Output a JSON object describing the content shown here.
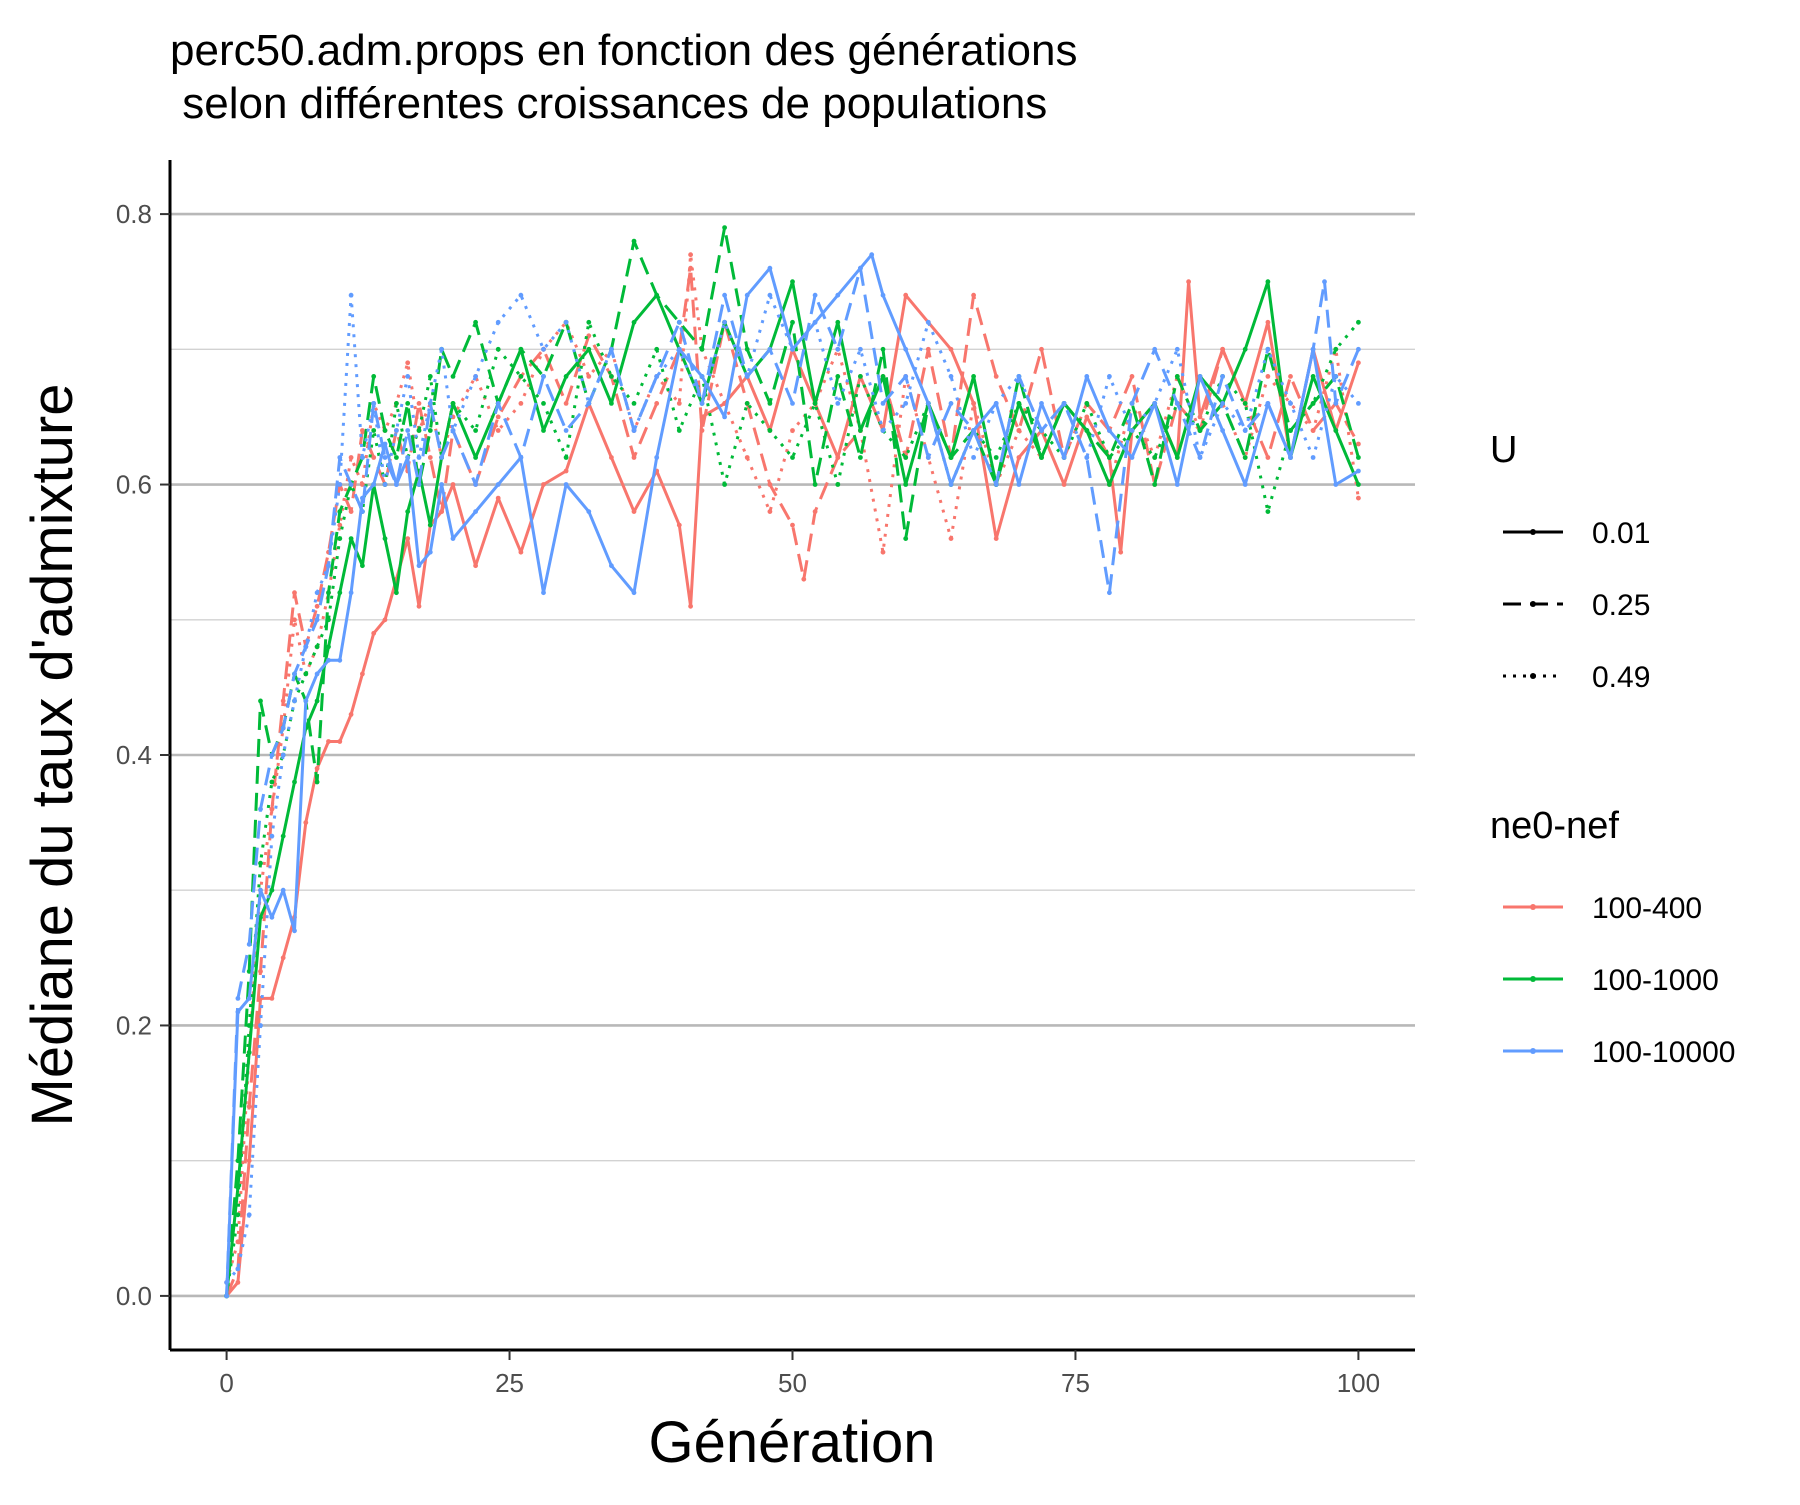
{
  "chart_data": {
    "type": "line",
    "title_lines": [
      "perc50.adm.props en fonction des générations",
      " selon différentes croissances de populations"
    ],
    "xlabel": "Génération",
    "ylabel": "Médiane du taux d'admixture",
    "x_ticks": [
      0,
      25,
      50,
      75,
      100
    ],
    "y_ticks": [
      0.0,
      0.2,
      0.4,
      0.6,
      0.8
    ],
    "x_tick_labels": [
      "0",
      "25",
      "50",
      "75",
      "100"
    ],
    "y_tick_labels": [
      "0.0",
      "0.2",
      "0.4",
      "0.6",
      "0.8"
    ],
    "xlim": [
      -5,
      105
    ],
    "ylim": [
      -0.04,
      0.84
    ],
    "grid": "horizontal",
    "legend_placement": "right",
    "legends": {
      "linetype": {
        "title": "U",
        "entries": [
          {
            "label": "0.01",
            "dash": "solid"
          },
          {
            "label": "0.25",
            "dash": "dashed"
          },
          {
            "label": "0.49",
            "dash": "dotted"
          }
        ]
      },
      "color": {
        "title": "ne0-nef",
        "entries": [
          {
            "label": "100-400",
            "color": "#F8766D"
          },
          {
            "label": "100-1000",
            "color": "#00BA38"
          },
          {
            "label": "100-10000",
            "color": "#619CFF"
          }
        ]
      }
    },
    "series": [
      {
        "ne": "100-400",
        "u": "0.01",
        "color": "#F8766D",
        "dash": "solid",
        "x": [
          0,
          1,
          2,
          3,
          4,
          5,
          6,
          7,
          8,
          9,
          10,
          11,
          12,
          13,
          14,
          15,
          16,
          17,
          18,
          19,
          20,
          22,
          24,
          26,
          28,
          30,
          32,
          34,
          36,
          38,
          40,
          41,
          42,
          44,
          46,
          48,
          50,
          52,
          54,
          56,
          58,
          60,
          62,
          64,
          66,
          68,
          70,
          72,
          74,
          76,
          78,
          79,
          80,
          82,
          84,
          85,
          86,
          88,
          90,
          92,
          94,
          96,
          98,
          100
        ],
        "y": [
          0.0,
          0.01,
          0.1,
          0.22,
          0.22,
          0.25,
          0.28,
          0.35,
          0.39,
          0.41,
          0.41,
          0.43,
          0.46,
          0.49,
          0.5,
          0.53,
          0.56,
          0.51,
          0.57,
          0.58,
          0.6,
          0.54,
          0.59,
          0.55,
          0.6,
          0.61,
          0.66,
          0.62,
          0.58,
          0.61,
          0.57,
          0.51,
          0.65,
          0.66,
          0.68,
          0.64,
          0.7,
          0.66,
          0.62,
          0.68,
          0.64,
          0.74,
          0.72,
          0.7,
          0.66,
          0.56,
          0.62,
          0.64,
          0.6,
          0.65,
          0.62,
          0.55,
          0.64,
          0.66,
          0.62,
          0.75,
          0.65,
          0.7,
          0.66,
          0.72,
          0.62,
          0.7,
          0.64,
          0.69
        ]
      },
      {
        "ne": "100-400",
        "u": "0.25",
        "color": "#F8766D",
        "dash": "dashed",
        "x": [
          0,
          1,
          2,
          3,
          4,
          5,
          6,
          7,
          8,
          9,
          10,
          11,
          12,
          13,
          14,
          15,
          16,
          17,
          18,
          19,
          20,
          22,
          24,
          26,
          28,
          30,
          32,
          34,
          36,
          38,
          40,
          41,
          42,
          44,
          46,
          48,
          50,
          51,
          52,
          54,
          56,
          58,
          60,
          62,
          64,
          66,
          68,
          70,
          72,
          74,
          76,
          78,
          80,
          82,
          84,
          86,
          88,
          90,
          92,
          94,
          96,
          98,
          100
        ],
        "y": [
          0.0,
          0.02,
          0.14,
          0.24,
          0.36,
          0.44,
          0.52,
          0.48,
          0.51,
          0.55,
          0.6,
          0.58,
          0.64,
          0.62,
          0.6,
          0.64,
          0.61,
          0.66,
          0.62,
          0.58,
          0.64,
          0.6,
          0.65,
          0.68,
          0.7,
          0.66,
          0.71,
          0.68,
          0.62,
          0.66,
          0.7,
          0.76,
          0.64,
          0.72,
          0.66,
          0.6,
          0.57,
          0.53,
          0.58,
          0.62,
          0.64,
          0.68,
          0.62,
          0.7,
          0.62,
          0.74,
          0.68,
          0.64,
          0.7,
          0.62,
          0.66,
          0.64,
          0.68,
          0.6,
          0.66,
          0.64,
          0.7,
          0.66,
          0.62,
          0.68,
          0.64,
          0.66,
          0.63
        ]
      },
      {
        "ne": "100-400",
        "u": "0.49",
        "color": "#F8766D",
        "dash": "dotted",
        "x": [
          0,
          1,
          2,
          3,
          4,
          5,
          6,
          7,
          8,
          9,
          10,
          11,
          12,
          13,
          14,
          15,
          16,
          17,
          18,
          19,
          20,
          22,
          24,
          26,
          28,
          30,
          32,
          34,
          36,
          38,
          40,
          41,
          42,
          44,
          46,
          48,
          50,
          52,
          54,
          56,
          58,
          60,
          62,
          64,
          66,
          68,
          70,
          72,
          74,
          76,
          78,
          80,
          82,
          84,
          86,
          88,
          90,
          92,
          94,
          96,
          98,
          100
        ],
        "y": [
          0.01,
          0.04,
          0.18,
          0.3,
          0.36,
          0.42,
          0.5,
          0.46,
          0.48,
          0.52,
          0.57,
          0.62,
          0.6,
          0.66,
          0.64,
          0.66,
          0.69,
          0.64,
          0.66,
          0.62,
          0.65,
          0.68,
          0.64,
          0.66,
          0.7,
          0.72,
          0.68,
          0.7,
          0.64,
          0.68,
          0.66,
          0.77,
          0.7,
          0.66,
          0.62,
          0.58,
          0.64,
          0.66,
          0.7,
          0.64,
          0.55,
          0.68,
          0.62,
          0.56,
          0.66,
          0.6,
          0.64,
          0.62,
          0.66,
          0.64,
          0.6,
          0.66,
          0.62,
          0.68,
          0.64,
          0.66,
          0.62,
          0.68,
          0.66,
          0.64,
          0.7,
          0.59
        ]
      },
      {
        "ne": "100-1000",
        "u": "0.01",
        "color": "#00BA38",
        "dash": "solid",
        "x": [
          0,
          1,
          2,
          3,
          4,
          5,
          6,
          7,
          8,
          9,
          10,
          11,
          12,
          13,
          14,
          15,
          16,
          17,
          18,
          19,
          20,
          22,
          24,
          26,
          28,
          30,
          32,
          34,
          36,
          38,
          40,
          42,
          44,
          46,
          48,
          50,
          52,
          54,
          56,
          58,
          60,
          62,
          64,
          66,
          68,
          70,
          72,
          74,
          76,
          78,
          80,
          82,
          84,
          86,
          88,
          90,
          92,
          94,
          96,
          98,
          100
        ],
        "y": [
          0.0,
          0.08,
          0.18,
          0.28,
          0.3,
          0.34,
          0.38,
          0.42,
          0.44,
          0.48,
          0.52,
          0.56,
          0.54,
          0.6,
          0.56,
          0.52,
          0.58,
          0.61,
          0.57,
          0.62,
          0.66,
          0.62,
          0.66,
          0.7,
          0.64,
          0.68,
          0.7,
          0.66,
          0.72,
          0.74,
          0.7,
          0.66,
          0.72,
          0.68,
          0.7,
          0.75,
          0.66,
          0.72,
          0.64,
          0.68,
          0.6,
          0.66,
          0.62,
          0.68,
          0.6,
          0.66,
          0.62,
          0.66,
          0.64,
          0.6,
          0.64,
          0.66,
          0.62,
          0.68,
          0.66,
          0.7,
          0.75,
          0.62,
          0.68,
          0.64,
          0.6
        ]
      },
      {
        "ne": "100-1000",
        "u": "0.25",
        "color": "#00BA38",
        "dash": "dashed",
        "x": [
          0,
          1,
          2,
          3,
          4,
          5,
          6,
          7,
          8,
          9,
          10,
          11,
          12,
          13,
          14,
          15,
          16,
          17,
          18,
          19,
          20,
          22,
          24,
          26,
          28,
          30,
          32,
          34,
          36,
          38,
          40,
          42,
          44,
          46,
          48,
          50,
          52,
          54,
          56,
          58,
          60,
          62,
          64,
          66,
          68,
          70,
          72,
          74,
          76,
          78,
          80,
          82,
          84,
          86,
          88,
          90,
          92,
          94,
          96,
          98,
          100
        ],
        "y": [
          0.0,
          0.1,
          0.24,
          0.44,
          0.4,
          0.42,
          0.46,
          0.44,
          0.38,
          0.52,
          0.58,
          0.6,
          0.62,
          0.68,
          0.64,
          0.62,
          0.66,
          0.6,
          0.64,
          0.7,
          0.68,
          0.72,
          0.66,
          0.7,
          0.68,
          0.72,
          0.66,
          0.7,
          0.78,
          0.74,
          0.72,
          0.7,
          0.79,
          0.7,
          0.66,
          0.72,
          0.6,
          0.68,
          0.62,
          0.7,
          0.56,
          0.66,
          0.62,
          0.64,
          0.6,
          0.68,
          0.62,
          0.66,
          0.64,
          0.62,
          0.66,
          0.6,
          0.68,
          0.64,
          0.66,
          0.62,
          0.7,
          0.64,
          0.66,
          0.68,
          0.62
        ]
      },
      {
        "ne": "100-1000",
        "u": "0.49",
        "color": "#00BA38",
        "dash": "dotted",
        "x": [
          0,
          1,
          2,
          3,
          4,
          5,
          6,
          7,
          8,
          9,
          10,
          11,
          12,
          13,
          14,
          15,
          16,
          17,
          18,
          19,
          20,
          22,
          24,
          26,
          28,
          30,
          32,
          34,
          36,
          38,
          40,
          42,
          44,
          46,
          48,
          50,
          52,
          54,
          56,
          58,
          60,
          62,
          64,
          66,
          68,
          70,
          72,
          74,
          76,
          78,
          80,
          82,
          84,
          86,
          88,
          90,
          92,
          94,
          96,
          98,
          100
        ],
        "y": [
          0.0,
          0.06,
          0.2,
          0.32,
          0.38,
          0.4,
          0.44,
          0.46,
          0.48,
          0.5,
          0.56,
          0.6,
          0.58,
          0.64,
          0.6,
          0.66,
          0.62,
          0.64,
          0.68,
          0.62,
          0.66,
          0.64,
          0.7,
          0.68,
          0.66,
          0.62,
          0.72,
          0.68,
          0.66,
          0.7,
          0.64,
          0.68,
          0.6,
          0.66,
          0.64,
          0.62,
          0.66,
          0.6,
          0.68,
          0.64,
          0.62,
          0.66,
          0.6,
          0.64,
          0.62,
          0.66,
          0.64,
          0.62,
          0.66,
          0.62,
          0.64,
          0.62,
          0.66,
          0.64,
          0.68,
          0.66,
          0.58,
          0.64,
          0.66,
          0.7,
          0.72
        ]
      },
      {
        "ne": "100-10000",
        "u": "0.01",
        "color": "#619CFF",
        "dash": "solid",
        "x": [
          0,
          1,
          2,
          3,
          4,
          5,
          6,
          7,
          8,
          9,
          10,
          11,
          12,
          13,
          14,
          15,
          16,
          17,
          18,
          19,
          20,
          22,
          24,
          26,
          28,
          30,
          32,
          34,
          36,
          38,
          40,
          42,
          44,
          46,
          48,
          50,
          52,
          54,
          56,
          57,
          58,
          60,
          62,
          64,
          66,
          68,
          70,
          72,
          74,
          76,
          78,
          80,
          82,
          84,
          86,
          88,
          90,
          92,
          94,
          96,
          98,
          100
        ],
        "y": [
          0.0,
          0.21,
          0.22,
          0.3,
          0.28,
          0.3,
          0.27,
          0.44,
          0.46,
          0.47,
          0.47,
          0.52,
          0.59,
          0.6,
          0.63,
          0.6,
          0.62,
          0.54,
          0.55,
          0.6,
          0.56,
          0.58,
          0.6,
          0.62,
          0.52,
          0.6,
          0.58,
          0.54,
          0.52,
          0.62,
          0.7,
          0.68,
          0.65,
          0.74,
          0.76,
          0.7,
          0.72,
          0.74,
          0.76,
          0.77,
          0.74,
          0.7,
          0.66,
          0.6,
          0.64,
          0.66,
          0.6,
          0.66,
          0.62,
          0.68,
          0.64,
          0.62,
          0.66,
          0.6,
          0.68,
          0.64,
          0.6,
          0.66,
          0.62,
          0.7,
          0.6,
          0.61
        ]
      },
      {
        "ne": "100-10000",
        "u": "0.25",
        "color": "#619CFF",
        "dash": "dashed",
        "x": [
          0,
          1,
          2,
          3,
          4,
          5,
          6,
          7,
          8,
          9,
          10,
          11,
          12,
          13,
          14,
          15,
          16,
          17,
          18,
          19,
          20,
          22,
          24,
          26,
          28,
          30,
          32,
          34,
          36,
          38,
          40,
          42,
          44,
          46,
          48,
          50,
          52,
          54,
          56,
          58,
          60,
          62,
          64,
          66,
          68,
          70,
          72,
          74,
          76,
          78,
          80,
          82,
          84,
          86,
          88,
          90,
          92,
          94,
          96,
          97,
          98,
          100
        ],
        "y": [
          0.0,
          0.22,
          0.26,
          0.36,
          0.4,
          0.42,
          0.46,
          0.48,
          0.5,
          0.54,
          0.62,
          0.6,
          0.58,
          0.66,
          0.62,
          0.6,
          0.64,
          0.6,
          0.66,
          0.62,
          0.64,
          0.6,
          0.66,
          0.62,
          0.68,
          0.64,
          0.66,
          0.7,
          0.64,
          0.68,
          0.72,
          0.66,
          0.74,
          0.68,
          0.7,
          0.66,
          0.74,
          0.7,
          0.76,
          0.66,
          0.68,
          0.62,
          0.66,
          0.64,
          0.6,
          0.68,
          0.64,
          0.66,
          0.62,
          0.52,
          0.66,
          0.7,
          0.66,
          0.62,
          0.68,
          0.64,
          0.66,
          0.62,
          0.7,
          0.75,
          0.66,
          0.7
        ]
      },
      {
        "ne": "100-10000",
        "u": "0.49",
        "color": "#619CFF",
        "dash": "dotted",
        "x": [
          0,
          1,
          2,
          3,
          4,
          5,
          6,
          7,
          8,
          9,
          10,
          11,
          12,
          13,
          14,
          15,
          16,
          17,
          18,
          19,
          20,
          22,
          24,
          26,
          28,
          30,
          32,
          34,
          36,
          38,
          40,
          42,
          44,
          46,
          48,
          50,
          52,
          54,
          56,
          58,
          60,
          62,
          64,
          66,
          68,
          70,
          72,
          74,
          76,
          78,
          80,
          82,
          84,
          86,
          88,
          90,
          92,
          94,
          96,
          98,
          100
        ],
        "y": [
          0.01,
          0.02,
          0.06,
          0.2,
          0.34,
          0.4,
          0.44,
          0.48,
          0.52,
          0.54,
          0.6,
          0.74,
          0.62,
          0.66,
          0.6,
          0.64,
          0.68,
          0.62,
          0.66,
          0.7,
          0.64,
          0.68,
          0.72,
          0.74,
          0.7,
          0.72,
          0.66,
          0.7,
          0.64,
          0.68,
          0.7,
          0.66,
          0.72,
          0.68,
          0.74,
          0.7,
          0.72,
          0.66,
          0.7,
          0.64,
          0.66,
          0.72,
          0.68,
          0.62,
          0.66,
          0.68,
          0.64,
          0.66,
          0.62,
          0.68,
          0.64,
          0.66,
          0.7,
          0.62,
          0.66,
          0.64,
          0.7,
          0.66,
          0.62,
          0.68,
          0.66
        ]
      }
    ]
  }
}
